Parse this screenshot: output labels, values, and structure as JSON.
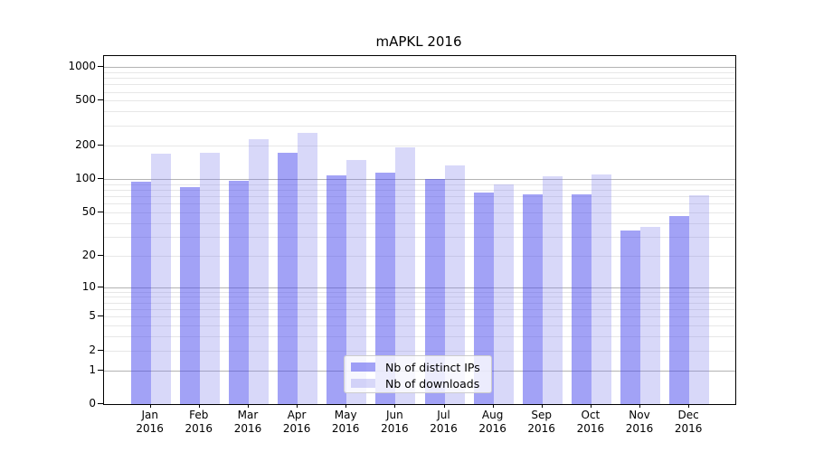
{
  "title": "mAPKL 2016",
  "chart_data": {
    "type": "bar",
    "title": "mAPKL 2016",
    "categories": [
      "Jan 2016",
      "Feb 2016",
      "Mar 2016",
      "Apr 2016",
      "May 2016",
      "Jun 2016",
      "Jul 2016",
      "Aug 2016",
      "Sep 2016",
      "Oct 2016",
      "Nov 2016",
      "Dec 2016"
    ],
    "series": [
      {
        "name": "Nb of distinct IPs",
        "color": "#4646ee",
        "opacity": 0.5,
        "values": [
          94,
          85,
          97,
          170,
          107,
          113,
          100,
          75,
          73,
          73,
          34,
          46
        ]
      },
      {
        "name": "Nb of downloads",
        "color": "#7d7deb",
        "opacity": 0.3,
        "values": [
          167,
          172,
          226,
          260,
          149,
          193,
          132,
          90,
          105,
          110,
          37,
          71
        ]
      }
    ],
    "xlabel": "",
    "ylabel": "",
    "yscale": "log1p",
    "y_ticks": [
      0,
      1,
      2,
      5,
      10,
      20,
      50,
      100,
      200,
      500,
      1000
    ],
    "ylim": [
      0,
      1000
    ],
    "grid": true,
    "legend_position": "lower center"
  }
}
